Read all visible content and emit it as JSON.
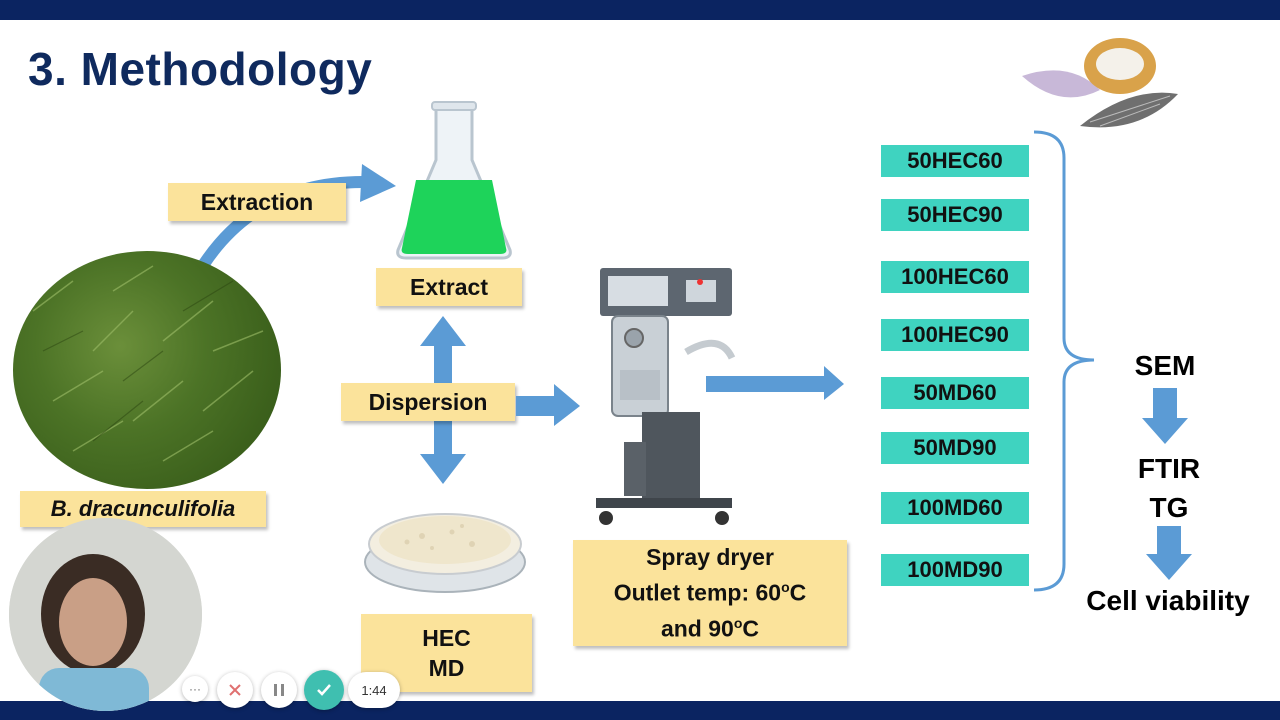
{
  "slide": {
    "title": "3. Methodology",
    "labels": {
      "extraction": "Extraction",
      "extract": "Extract",
      "dispersion": "Dispersion",
      "plant": "B. dracunculifolia",
      "carrier_1": "HEC",
      "carrier_2": "MD",
      "spray_line1": "Spray dryer",
      "spray_line2_prefix": "Outlet temp: 60",
      "spray_line2_sup": "o",
      "spray_line2_suffix": "C",
      "spray_line3_prefix": "and 90",
      "spray_line3_sup": "o",
      "spray_line3_suffix": "C"
    },
    "samples": [
      "50HEC60",
      "50HEC90",
      "100HEC60",
      "100HEC90",
      "50MD60",
      "50MD90",
      "100MD60",
      "100MD90"
    ],
    "analysis": {
      "sem": "SEM",
      "ftir": "FTIR",
      "tg": "TG",
      "cell": "Cell viability"
    },
    "colors": {
      "bar": "#0b2461",
      "title": "#0f2a5e",
      "label_fill": "#fbe39b",
      "sample_fill": "#3fd3c0",
      "arrow": "#5b9bd5"
    }
  },
  "player": {
    "time": "1:44",
    "more_icon": "more-icon",
    "close_icon": "close-icon",
    "pause_icon": "pause-icon",
    "check_icon": "check-icon"
  }
}
